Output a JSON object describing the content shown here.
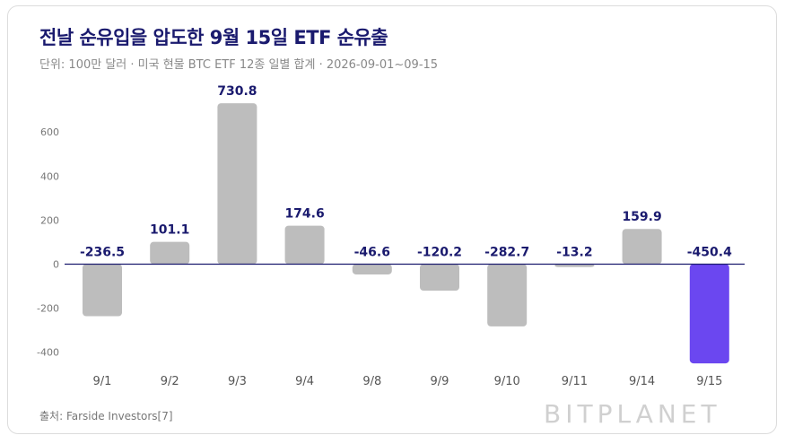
{
  "title": "전날 순유입을 압도한 9월 15일 ETF 순유출",
  "subtitle": "단위: 100만 달러 · 미국 현물 BTC ETF 12종 일별 합계 · 2026-09-01~09-15",
  "source": "출처: Farside Investors[7]",
  "brand": "BITPLANET",
  "colors": {
    "bar": "#bdbdbd",
    "highlight": "#6b47f0",
    "label": "#1a1a6e",
    "zero_line": "#1a1a6e",
    "axis_text": "#777777"
  },
  "chart_data": {
    "type": "bar",
    "categories": [
      "9/1",
      "9/2",
      "9/3",
      "9/4",
      "9/8",
      "9/9",
      "9/10",
      "9/11",
      "9/14",
      "9/15"
    ],
    "values": [
      -236.5,
      101.1,
      730.8,
      174.6,
      -46.6,
      -120.2,
      -282.7,
      -13.2,
      159.9,
      -450.4
    ],
    "value_labels": [
      "-236.5",
      "101.1",
      "730.8",
      "174.6",
      "-46.6",
      "-120.2",
      "-282.7",
      "-13.2",
      "159.9",
      "-450.4"
    ],
    "highlight_index": 9,
    "y_ticks": [
      "600",
      "400",
      "200",
      "0",
      "-200",
      "-400"
    ],
    "ylim": [
      -460,
      740
    ],
    "grid": false
  }
}
